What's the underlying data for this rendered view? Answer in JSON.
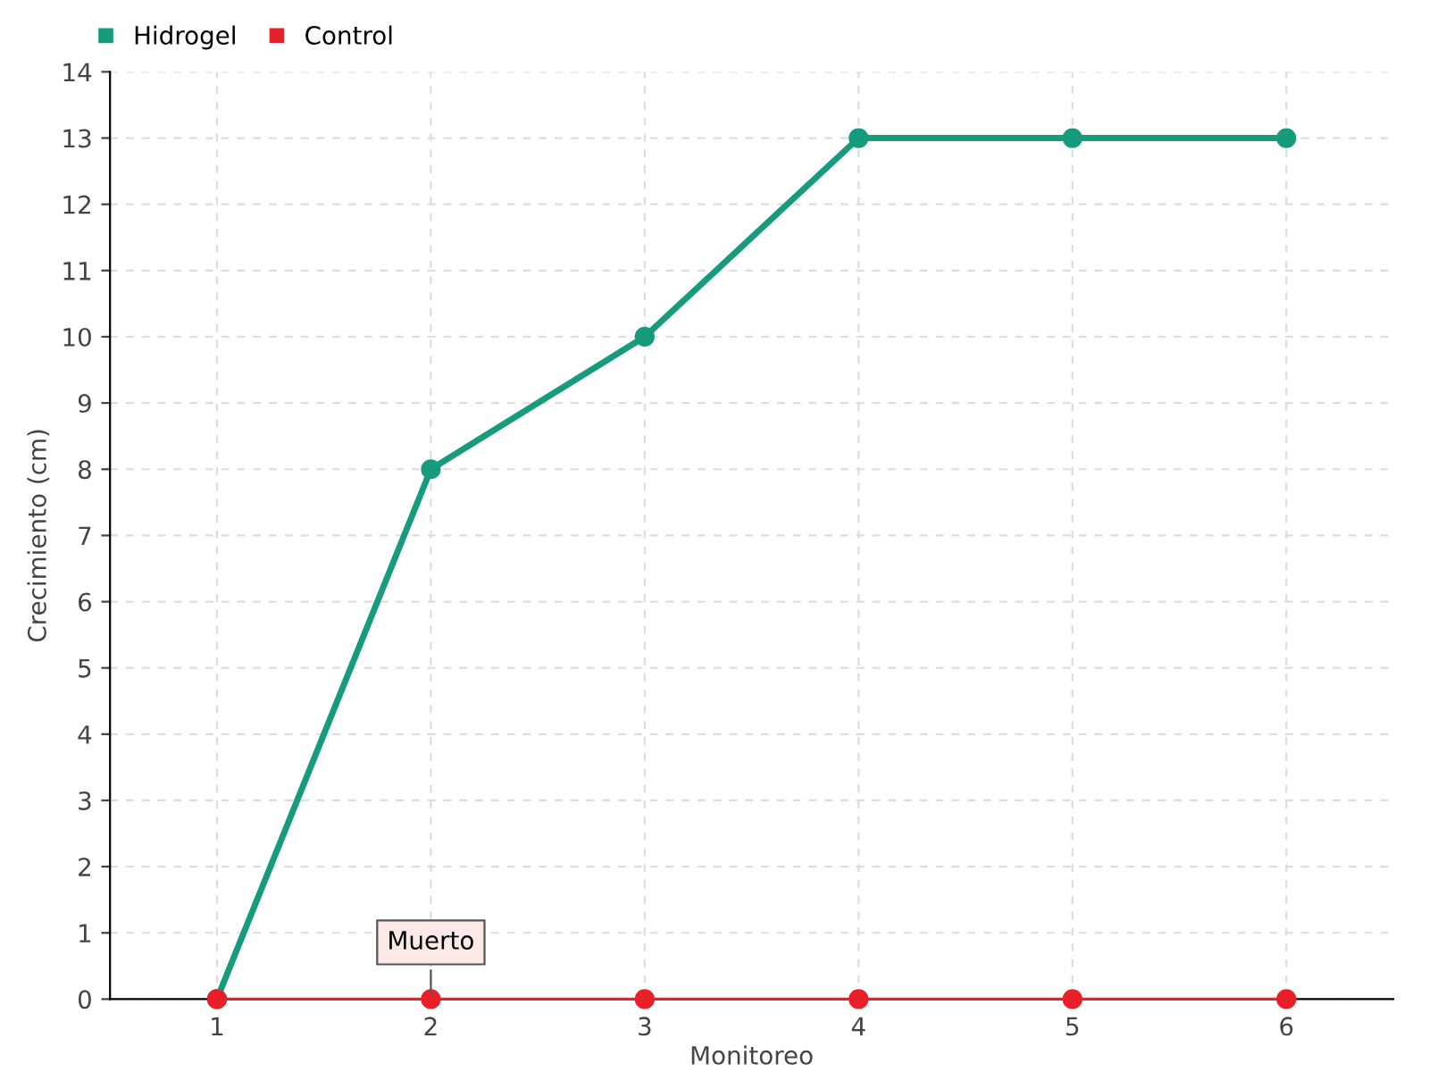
{
  "chart_data": {
    "type": "line",
    "xlabel": "Monitoreo",
    "ylabel": "Crecimiento (cm)",
    "categories": [
      "1",
      "2",
      "3",
      "4",
      "5",
      "6"
    ],
    "series": [
      {
        "name": "Hidrogel",
        "color": "#169c7c",
        "values": [
          0,
          8,
          10,
          13,
          13,
          13
        ]
      },
      {
        "name": "Control",
        "color": "#e8202a",
        "values": [
          0,
          0,
          0,
          0,
          0,
          0
        ]
      }
    ],
    "ylim": [
      0,
      14
    ],
    "yticks": [
      0,
      1,
      2,
      3,
      4,
      5,
      6,
      7,
      8,
      9,
      10,
      11,
      12,
      13,
      14
    ],
    "grid": true,
    "legend": "top left",
    "marker": "circle",
    "line_style": "solid",
    "annotations": [
      {
        "text": "Muerto",
        "x": "2",
        "y": 0
      }
    ]
  }
}
